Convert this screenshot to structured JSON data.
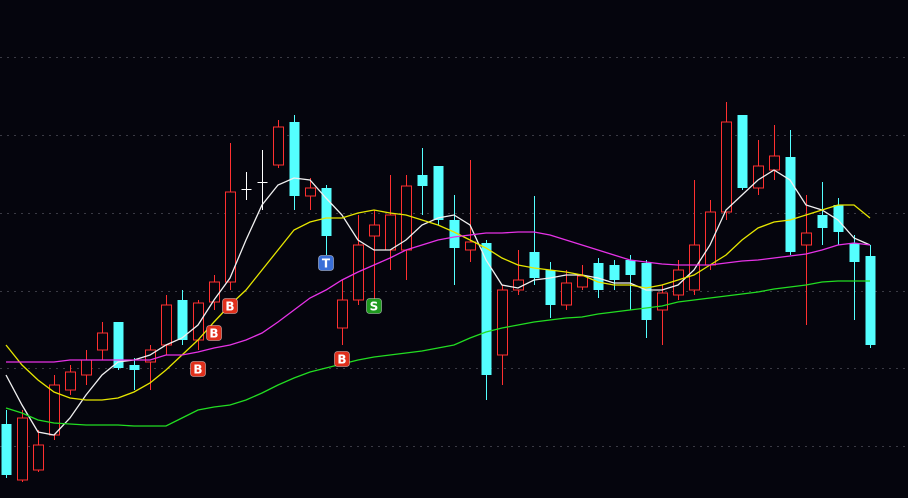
{
  "chart_data": {
    "type": "candlestick",
    "ylim": [
      0,
      498
    ],
    "grid_values": [
      441,
      363,
      285,
      207,
      130,
      52
    ],
    "grid": true,
    "background": "#05050d",
    "grid_color": "#3a3a44",
    "up_color": "#ff3030",
    "down_color": "#54ffff",
    "flat_color": "#ffffff",
    "open": [
      74,
      18,
      28,
      63,
      108,
      123,
      148,
      176,
      133,
      136,
      153,
      198,
      158,
      196,
      216,
      309,
      316,
      333,
      376,
      302,
      310,
      170,
      198,
      262,
      248,
      248,
      323,
      332,
      278,
      248,
      255,
      143,
      208,
      246,
      228,
      193,
      211,
      235,
      233,
      238,
      235,
      188,
      203,
      208,
      233,
      286,
      383,
      310,
      328,
      341,
      253,
      283,
      293,
      255,
      242
    ],
    "high": [
      88,
      88,
      68,
      123,
      133,
      148,
      176,
      176,
      140,
      153,
      203,
      208,
      198,
      223,
      355,
      326,
      348,
      378,
      383,
      320,
      313,
      218,
      283,
      288,
      323,
      323,
      350,
      332,
      303,
      338,
      258,
      213,
      248,
      302,
      236,
      228,
      233,
      240,
      238,
      243,
      238,
      213,
      238,
      318,
      298,
      396,
      383,
      358,
      373,
      368,
      303,
      316,
      300,
      263,
      253
    ],
    "low": [
      20,
      16,
      26,
      58,
      103,
      113,
      138,
      128,
      108,
      108,
      143,
      153,
      148,
      188,
      208,
      298,
      288,
      330,
      288,
      288,
      243,
      153,
      193,
      198,
      228,
      218,
      283,
      273,
      213,
      236,
      98,
      113,
      203,
      213,
      180,
      188,
      208,
      200,
      208,
      188,
      160,
      153,
      198,
      203,
      228,
      278,
      308,
      303,
      318,
      243,
      173,
      253,
      253,
      178,
      150
    ],
    "close": [
      23,
      80,
      53,
      113,
      126,
      138,
      165,
      130,
      128,
      148,
      193,
      158,
      195,
      216,
      306,
      309,
      316,
      371,
      302,
      310,
      262,
      198,
      253,
      273,
      283,
      312,
      312,
      278,
      250,
      256,
      123,
      208,
      218,
      220,
      193,
      215,
      222,
      208,
      218,
      223,
      178,
      205,
      228,
      253,
      286,
      376,
      310,
      332,
      342,
      246,
      265,
      270,
      266,
      236,
      153
    ],
    "series": [
      {
        "color": "#f0f0f0",
        "values": [
          123,
          93,
          66,
          63,
          80,
          103,
          123,
          136,
          138,
          143,
          153,
          160,
          173,
          198,
          220,
          258,
          293,
          313,
          320,
          318,
          300,
          283,
          258,
          248,
          248,
          258,
          273,
          280,
          283,
          273,
          238,
          213,
          210,
          218,
          220,
          223,
          223,
          220,
          215,
          215,
          208,
          208,
          213,
          228,
          253,
          288,
          303,
          318,
          328,
          318,
          293,
          288,
          278,
          260,
          253
        ]
      },
      {
        "color": "#e6e600",
        "values": [
          153,
          133,
          118,
          106,
          100,
          98,
          98,
          100,
          106,
          115,
          128,
          143,
          158,
          176,
          193,
          208,
          228,
          248,
          268,
          276,
          280,
          280,
          285,
          288,
          285,
          283,
          278,
          273,
          266,
          258,
          250,
          240,
          233,
          230,
          228,
          226,
          223,
          216,
          213,
          213,
          210,
          213,
          218,
          223,
          233,
          243,
          258,
          270,
          276,
          278,
          283,
          288,
          293,
          293,
          280
        ]
      },
      {
        "color": "#e632e6",
        "values": [
          136,
          136,
          136,
          136,
          138,
          138,
          138,
          138,
          138,
          138,
          143,
          143,
          146,
          150,
          153,
          158,
          165,
          176,
          188,
          200,
          208,
          218,
          226,
          233,
          240,
          248,
          253,
          258,
          261,
          263,
          265,
          265,
          266,
          266,
          263,
          258,
          253,
          248,
          243,
          238,
          236,
          234,
          233,
          233,
          233,
          235,
          237,
          238,
          240,
          242,
          244,
          248,
          253,
          255,
          253
        ]
      },
      {
        "color": "#22dd22",
        "values": [
          90,
          85,
          78,
          75,
          74,
          73,
          73,
          73,
          72,
          72,
          72,
          80,
          88,
          91,
          93,
          98,
          105,
          113,
          120,
          126,
          130,
          134,
          138,
          141,
          143,
          145,
          147,
          150,
          153,
          160,
          166,
          170,
          173,
          176,
          178,
          180,
          181,
          184,
          186,
          188,
          190,
          192,
          196,
          198,
          200,
          202,
          204,
          206,
          209,
          211,
          213,
          216,
          217,
          217,
          217
        ]
      }
    ],
    "annotations": [
      {
        "text": "B",
        "index": 12,
        "y": 129,
        "color": "#e0301c"
      },
      {
        "text": "B",
        "index": 13,
        "y": 165,
        "color": "#e0301c"
      },
      {
        "text": "B",
        "index": 14,
        "y": 192,
        "color": "#e0301c"
      },
      {
        "text": "T",
        "index": 20,
        "y": 235,
        "color": "#3a6fd8"
      },
      {
        "text": "B",
        "index": 21,
        "y": 139,
        "color": "#e0301c"
      },
      {
        "text": "S",
        "index": 23,
        "y": 192,
        "color": "#1e9a1e"
      }
    ]
  }
}
